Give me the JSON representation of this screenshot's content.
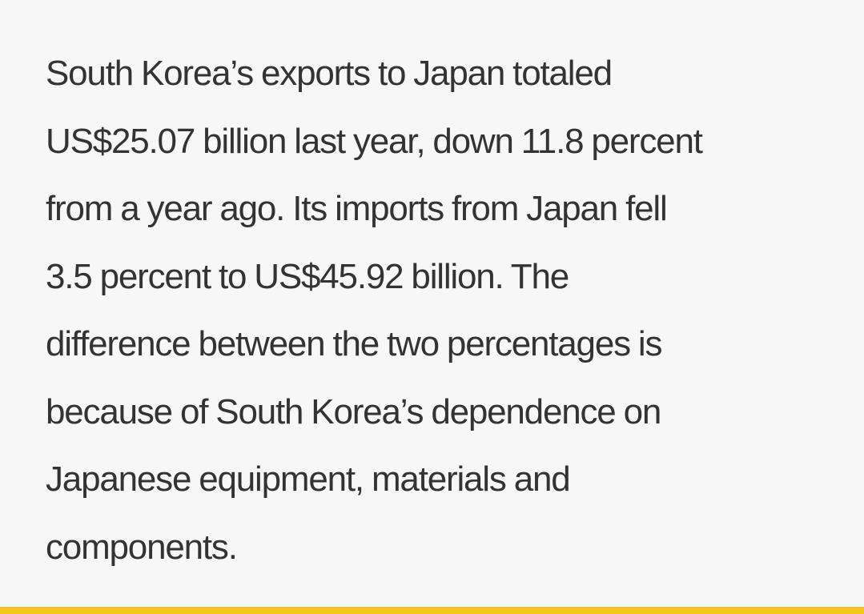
{
  "article": {
    "lines": [
      "South Korea’s exports to Japan totaled",
      "US$25.07 billion last year, down 11.8 percent",
      "from a year ago. Its imports from Japan fell",
      "3.5 percent to US$45.92 billion. The",
      "difference between the two percentages is",
      "because of South Korea’s dependence on",
      "Japanese equipment, materials and",
      "components."
    ]
  },
  "colors": {
    "background": "#f7f7f7",
    "text": "#333333",
    "accent": "#f5c518"
  }
}
